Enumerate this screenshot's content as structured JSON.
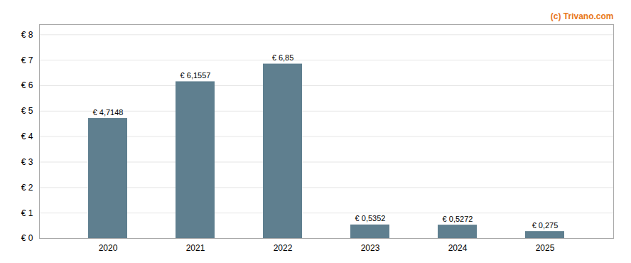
{
  "chart_data": {
    "type": "bar",
    "categories": [
      "2020",
      "2021",
      "2022",
      "2023",
      "2024",
      "2025"
    ],
    "values": [
      4.7148,
      6.1557,
      6.85,
      0.5352,
      0.5272,
      0.275
    ],
    "value_labels": [
      "€ 4,7148",
      "€ 6,1557",
      "€ 6,85",
      "€ 0,5352",
      "€ 0,5272",
      "€ 0,275"
    ],
    "data_labels": true,
    "color": "#5f7f8f",
    "ylim": [
      0,
      8.4
    ],
    "yticks": [
      {
        "value": 0,
        "label": "€ 0"
      },
      {
        "value": 1,
        "label": "€ 1"
      },
      {
        "value": 2,
        "label": "€ 2"
      },
      {
        "value": 3,
        "label": "€ 3"
      },
      {
        "value": 4,
        "label": "€ 4"
      },
      {
        "value": 5,
        "label": "€ 5"
      },
      {
        "value": 6,
        "label": "€ 6"
      },
      {
        "value": 7,
        "label": "€ 7"
      },
      {
        "value": 8,
        "label": "€ 8"
      }
    ],
    "grid": true,
    "annotations": [
      {
        "text": "(c) Trivano.com",
        "color": "#e87722"
      }
    ]
  }
}
